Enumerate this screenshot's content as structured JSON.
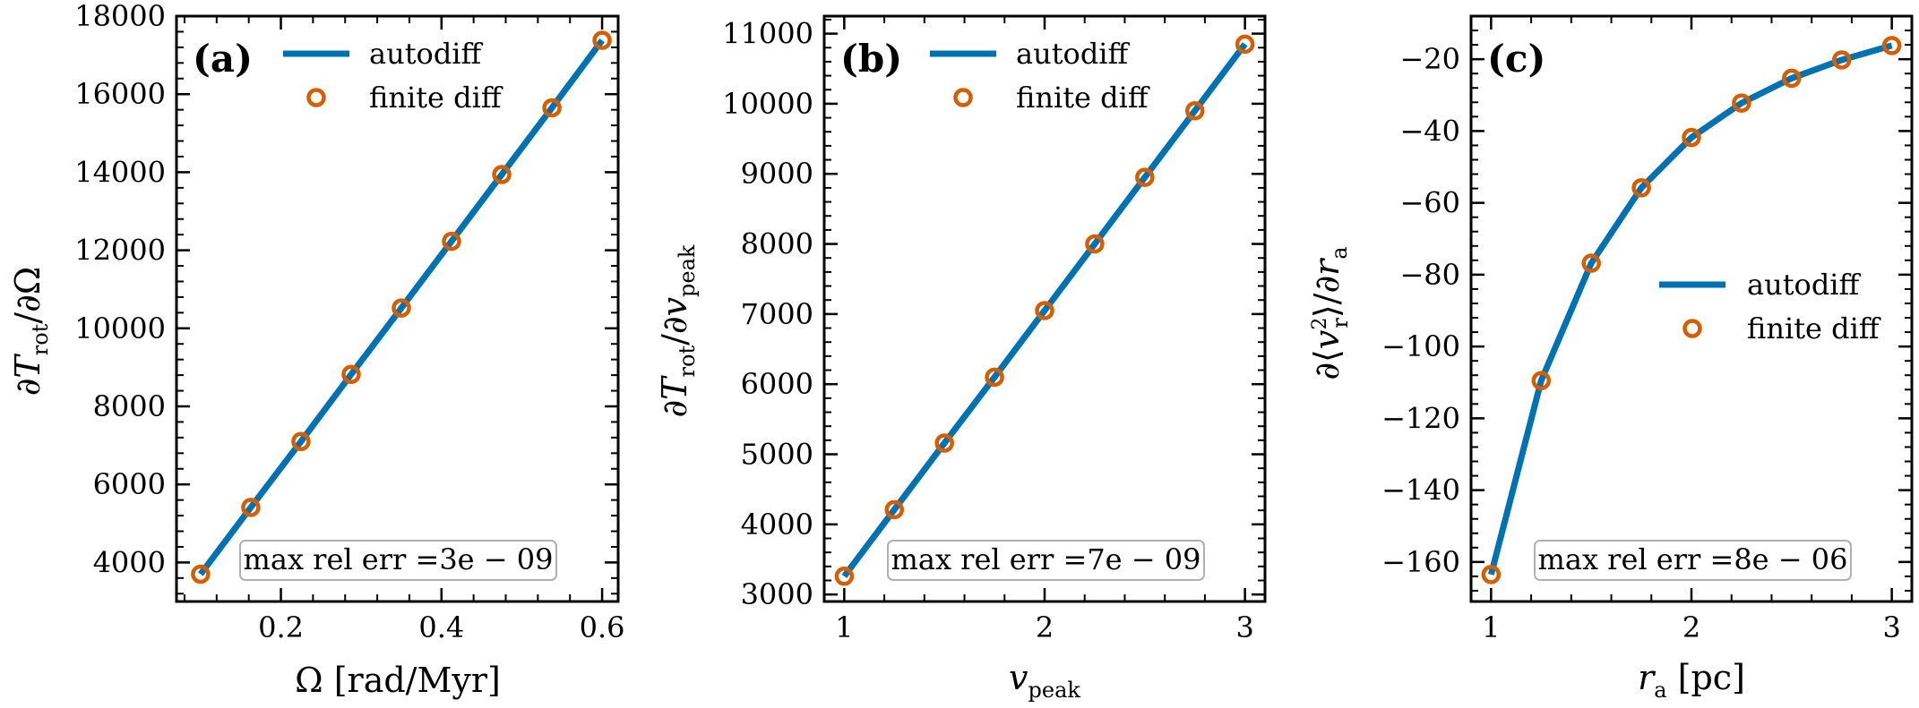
{
  "colors": {
    "autodiff": "#0072b2",
    "finite_diff": "#d55e00",
    "axes": "#000000",
    "annotation_border": "#b0b0b0"
  },
  "chart_data": [
    {
      "type": "line",
      "panel_tag": "(a)",
      "xlabel": "Ω [rad/Myr]",
      "ylabel": "∂T_rot/∂Ω",
      "xlim": [
        0.07,
        0.62
      ],
      "ylim": [
        3000,
        18000
      ],
      "xticks": [
        0.2,
        0.4,
        0.6
      ],
      "xtick_labels": [
        "0.2",
        "0.4",
        "0.6"
      ],
      "yticks": [
        4000,
        6000,
        8000,
        10000,
        12000,
        14000,
        16000,
        18000
      ],
      "ytick_labels": [
        "4000",
        "6000",
        "8000",
        "10000",
        "12000",
        "14000",
        "16000",
        "18000"
      ],
      "legend": {
        "placement": "top",
        "entries": [
          "autodiff",
          "finite diff"
        ]
      },
      "annotation": "max rel err  =3e − 09",
      "series": [
        {
          "name": "autodiff",
          "style": "line",
          "x": [
            0.1,
            0.1625,
            0.225,
            0.2875,
            0.35,
            0.4125,
            0.475,
            0.5375,
            0.6
          ],
          "y": [
            3700,
            5410,
            7100,
            8820,
            10520,
            12230,
            13940,
            15650,
            17380
          ]
        },
        {
          "name": "finite diff",
          "style": "marker",
          "x": [
            0.1,
            0.1625,
            0.225,
            0.2875,
            0.35,
            0.4125,
            0.475,
            0.5375,
            0.6
          ],
          "y": [
            3700,
            5410,
            7100,
            8820,
            10520,
            12230,
            13940,
            15650,
            17380
          ]
        }
      ]
    },
    {
      "type": "line",
      "panel_tag": "(b)",
      "xlabel": "v_peak",
      "ylabel": "∂T_rot/∂v_peak",
      "xlim": [
        0.9,
        3.1
      ],
      "ylim": [
        2900,
        11250
      ],
      "xticks": [
        1,
        2,
        3
      ],
      "xtick_labels": [
        "1",
        "2",
        "3"
      ],
      "yticks": [
        3000,
        4000,
        5000,
        6000,
        7000,
        8000,
        9000,
        10000,
        11000
      ],
      "ytick_labels": [
        "3000",
        "4000",
        "5000",
        "6000",
        "7000",
        "8000",
        "9000",
        "10000",
        "11000"
      ],
      "legend": {
        "placement": "top",
        "entries": [
          "autodiff",
          "finite diff"
        ]
      },
      "annotation": "max rel err  =7e − 09",
      "series": [
        {
          "name": "autodiff",
          "style": "line",
          "x": [
            1,
            1.25,
            1.5,
            1.75,
            2,
            2.25,
            2.5,
            2.75,
            3
          ],
          "y": [
            3260,
            4210,
            5160,
            6100,
            7050,
            8000,
            8950,
            9900,
            10850
          ]
        },
        {
          "name": "finite diff",
          "style": "marker",
          "x": [
            1,
            1.25,
            1.5,
            1.75,
            2,
            2.25,
            2.5,
            2.75,
            3
          ],
          "y": [
            3260,
            4210,
            5160,
            6100,
            7050,
            8000,
            8950,
            9900,
            10850
          ]
        }
      ]
    },
    {
      "type": "line",
      "panel_tag": "(c)",
      "xlabel": "r_a [pc]",
      "ylabel": "∂⟨v_r^2⟩/∂r_a",
      "xlim": [
        0.9,
        3.1
      ],
      "ylim": [
        -171,
        -8
      ],
      "xticks": [
        1,
        2,
        3
      ],
      "xtick_labels": [
        "1",
        "2",
        "3"
      ],
      "yticks": [
        -160,
        -140,
        -120,
        -100,
        -80,
        -60,
        -40,
        -20
      ],
      "ytick_labels": [
        "−160",
        "−140",
        "−120",
        "−100",
        "−80",
        "−60",
        "−40",
        "−20"
      ],
      "legend": {
        "placement": "center right",
        "entries": [
          "autodiff",
          "finite diff"
        ]
      },
      "annotation": "max rel err  =8e − 06",
      "series": [
        {
          "name": "autodiff",
          "style": "line",
          "x": [
            1,
            1.25,
            1.5,
            1.75,
            2,
            2.25,
            2.5,
            2.75,
            3
          ],
          "y": [
            -163.5,
            -109.5,
            -76.8,
            -55.8,
            -41.8,
            -32.2,
            -25.3,
            -20.2,
            -16.2
          ]
        },
        {
          "name": "finite diff",
          "style": "marker",
          "x": [
            1,
            1.25,
            1.5,
            1.75,
            2,
            2.25,
            2.5,
            2.75,
            3
          ],
          "y": [
            -163.5,
            -109.5,
            -76.8,
            -55.8,
            -41.8,
            -32.2,
            -25.3,
            -20.2,
            -16.2
          ]
        }
      ]
    }
  ]
}
